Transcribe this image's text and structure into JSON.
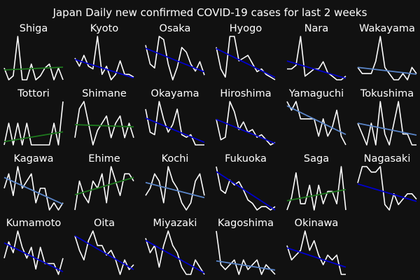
{
  "title": "Japan Daily new confirmed COVID-19 cases for last 2 weeks",
  "colors": {
    "background": "#111111",
    "series_line": "#ffffff",
    "trend_up": "#1e7a1e",
    "trend_down_strong": "#0000cc",
    "trend_down_mild": "#5b86c9"
  },
  "chart_data": [
    {
      "type": "line",
      "title": "Shiga",
      "days": 14,
      "values": [
        3,
        0,
        1,
        11,
        0,
        0,
        4,
        0,
        1,
        3,
        4,
        0,
        3,
        0
      ],
      "trend": "up",
      "trend_values": [
        2.5,
        3.2
      ],
      "grid": false,
      "axes_visible": false
    },
    {
      "type": "line",
      "title": "Kyoto",
      "days": 14,
      "values": [
        11,
        8,
        12,
        8,
        7,
        19,
        5,
        8,
        3,
        5,
        10,
        5,
        5,
        4
      ],
      "trend": "down_strong",
      "trend_values": [
        10.5,
        3.7
      ],
      "grid": false,
      "axes_visible": false
    },
    {
      "type": "line",
      "title": "Osaka",
      "days": 14,
      "values": [
        79,
        55,
        50,
        90,
        86,
        55,
        35,
        51,
        76,
        70,
        55,
        46,
        58,
        41
      ],
      "trend": "down_strong",
      "trend_values": [
        75,
        45
      ],
      "grid": false,
      "axes_visible": false
    },
    {
      "type": "line",
      "title": "Hyogo",
      "days": 14,
      "values": [
        14,
        6,
        3,
        18,
        18,
        9,
        10,
        11,
        8,
        5,
        6,
        4,
        3,
        2
      ],
      "trend": "down_strong",
      "trend_values": [
        13.5,
        2.9
      ],
      "grid": false,
      "axes_visible": false
    },
    {
      "type": "line",
      "title": "Nara",
      "days": 14,
      "values": [
        4,
        4,
        5,
        13,
        2,
        3,
        4,
        4,
        6,
        3,
        2,
        1,
        1,
        2
      ],
      "trend": "down_strong",
      "trend_values": [
        6.2,
        1.4
      ],
      "grid": false,
      "axes_visible": false
    },
    {
      "type": "line",
      "title": "Wakayama",
      "days": 14,
      "values": [
        2,
        1,
        1,
        1,
        3,
        7,
        2,
        1,
        0,
        0,
        1,
        0,
        2,
        1
      ],
      "trend": "down_mild",
      "trend_values": [
        2.0,
        0.9
      ],
      "grid": false,
      "axes_visible": false
    },
    {
      "type": "line",
      "title": "Tottori",
      "days": 14,
      "values": [
        0,
        1,
        0,
        1,
        0,
        1,
        0,
        0,
        0,
        0,
        0,
        1,
        0,
        2
      ],
      "trend": "up",
      "trend_values": [
        0.15,
        0.6
      ],
      "grid": false,
      "axes_visible": false
    },
    {
      "type": "line",
      "title": "Shimane",
      "days": 14,
      "values": [
        1,
        5,
        6,
        3,
        0,
        2,
        3,
        4,
        1,
        3,
        4,
        1,
        3,
        1
      ],
      "trend": "up",
      "trend_values": [
        2.8,
        2.5
      ],
      "grid": false,
      "axes_visible": false
    },
    {
      "type": "line",
      "title": "Okayama",
      "days": 14,
      "values": [
        19,
        10,
        9,
        22,
        15,
        10,
        13,
        19,
        9,
        8,
        9,
        5,
        5,
        5
      ],
      "trend": "down_strong",
      "trend_values": [
        15.5,
        6.0
      ],
      "grid": false,
      "axes_visible": false
    },
    {
      "type": "line",
      "title": "Hiroshima",
      "days": 14,
      "values": [
        12,
        4,
        5,
        19,
        15,
        8,
        11,
        7,
        8,
        5,
        6,
        4,
        2,
        3
      ],
      "trend": "down_strong",
      "trend_values": [
        12.0,
        2.6
      ],
      "grid": false,
      "axes_visible": false
    },
    {
      "type": "line",
      "title": "Yamaguchi",
      "days": 14,
      "values": [
        3,
        2,
        3,
        1,
        1,
        1,
        1,
        -1,
        1,
        -1,
        0,
        2,
        -1,
        -2
      ],
      "trend": "down_mild",
      "trend_values": [
        2.5,
        -0.8
      ],
      "grid": false,
      "axes_visible": false
    },
    {
      "type": "line",
      "title": "Tokushima",
      "days": 14,
      "values": [
        2,
        1,
        0,
        2,
        0,
        4,
        1,
        0,
        2,
        4,
        1,
        1,
        0,
        0
      ],
      "trend": "down_mild",
      "trend_values": [
        2.0,
        0.9
      ],
      "grid": false,
      "axes_visible": false
    },
    {
      "type": "line",
      "title": "Kagawa",
      "days": 14,
      "values": [
        2,
        4,
        1,
        5,
        2,
        3,
        4,
        0,
        2,
        2,
        -1,
        0,
        -1,
        0
      ],
      "trend": "down_mild",
      "trend_values": [
        3.5,
        -0.2
      ],
      "grid": false,
      "axes_visible": false
    },
    {
      "type": "line",
      "title": "Ehime",
      "days": 14,
      "values": [
        1,
        5,
        3,
        2,
        5,
        4,
        6,
        2,
        7,
        5,
        3,
        6,
        6,
        5
      ],
      "trend": "up",
      "trend_values": [
        3.1,
        5.5
      ],
      "grid": false,
      "axes_visible": false
    },
    {
      "type": "line",
      "title": "Kochi",
      "days": 14,
      "values": [
        1,
        2,
        4,
        3,
        0,
        5,
        3,
        2,
        0,
        -1,
        0,
        3,
        4,
        1
      ],
      "trend": "down_mild",
      "trend_values": [
        2.8,
        0.7
      ],
      "grid": false,
      "axes_visible": false
    },
    {
      "type": "line",
      "title": "Fukuoka",
      "days": 14,
      "values": [
        28,
        14,
        12,
        20,
        17,
        19,
        14,
        8,
        6,
        2,
        4,
        4,
        2,
        4
      ],
      "trend": "down_strong",
      "trend_values": [
        25,
        2
      ],
      "grid": false,
      "axes_visible": false
    },
    {
      "type": "line",
      "title": "Saga",
      "days": 14,
      "values": [
        0,
        2,
        6,
        1,
        1,
        4,
        0,
        4,
        1,
        3,
        3,
        1,
        7,
        0
      ],
      "trend": "up",
      "trend_values": [
        1.5,
        3.3
      ],
      "grid": false,
      "axes_visible": false
    },
    {
      "type": "line",
      "title": "Nagasaki",
      "days": 14,
      "values": [
        5,
        8,
        8,
        7,
        7,
        8,
        1,
        0,
        3,
        1,
        2,
        3,
        3,
        2
      ],
      "trend": "down_strong",
      "trend_values": [
        4.8,
        1.6
      ],
      "grid": false,
      "axes_visible": false
    },
    {
      "type": "line",
      "title": "Kumamoto",
      "days": 14,
      "values": [
        4,
        7,
        5,
        9,
        6,
        4,
        6,
        2,
        6,
        3,
        3,
        3,
        1,
        4
      ],
      "trend": "down_strong",
      "trend_values": [
        6.8,
        1.5
      ],
      "grid": false,
      "axes_visible": false
    },
    {
      "type": "line",
      "title": "Oita",
      "days": 14,
      "values": [
        8,
        5,
        3,
        7,
        9,
        6,
        6,
        4,
        5,
        3,
        0,
        3,
        1,
        2
      ],
      "trend": "down_strong",
      "trend_values": [
        8.0,
        1.0
      ],
      "grid": false,
      "axes_visible": false
    },
    {
      "type": "line",
      "title": "Miyazaki",
      "days": 14,
      "values": [
        5,
        3,
        4,
        1,
        4,
        6,
        4,
        3,
        1,
        0,
        0,
        2,
        1,
        0
      ],
      "trend": "down_strong",
      "trend_values": [
        4.7,
        0.2
      ],
      "grid": false,
      "axes_visible": false
    },
    {
      "type": "line",
      "title": "Kagoshima",
      "days": 14,
      "values": [
        9,
        2,
        1,
        2,
        3,
        0,
        3,
        1,
        2,
        3,
        0,
        2,
        1,
        0
      ],
      "trend": "down_mild",
      "trend_values": [
        2.8,
        0.9
      ],
      "grid": false,
      "axes_visible": false
    },
    {
      "type": "line",
      "title": "Okinawa",
      "days": 14,
      "values": [
        5,
        2,
        3,
        4,
        8,
        4,
        6,
        3,
        1,
        3,
        2,
        3,
        -1,
        -1
      ],
      "trend": "down_strong",
      "trend_values": [
        4.5,
        0.5
      ],
      "grid": false,
      "axes_visible": false
    }
  ]
}
